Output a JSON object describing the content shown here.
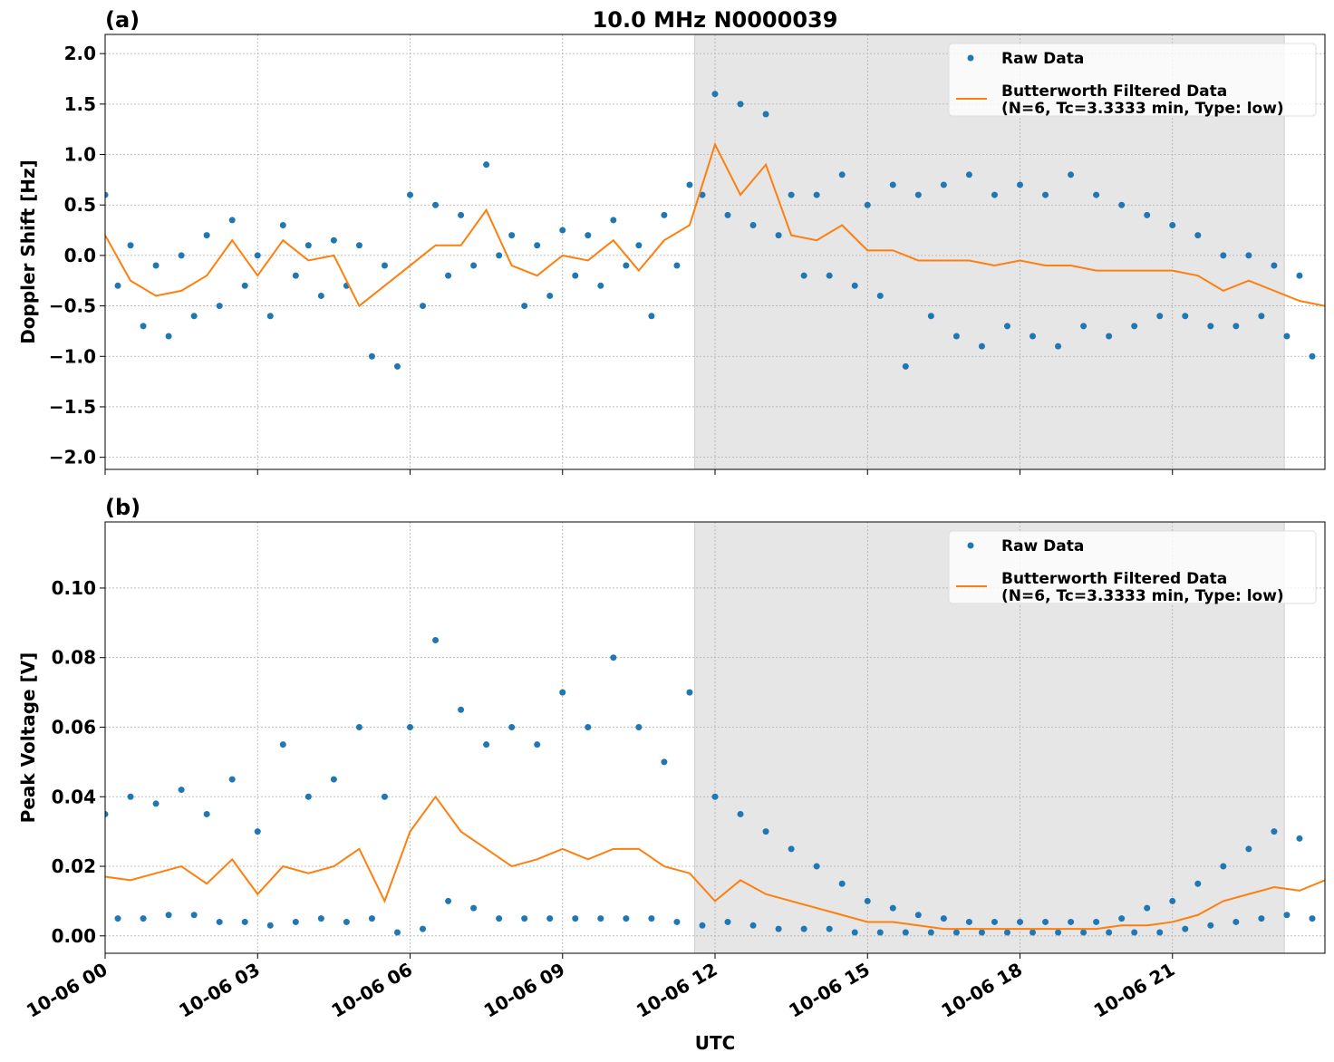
{
  "chart_data": [
    {
      "type": "scatter_line",
      "title": "10.0 MHz N0000039",
      "panel_label": "(a)",
      "ylabel": "Doppler Shift [Hz]",
      "xlim": [
        0,
        24
      ],
      "xticks": [
        0,
        3,
        6,
        9,
        12,
        15,
        18,
        21
      ],
      "xticklabels": false,
      "ylim": [
        -2.12,
        2.19
      ],
      "yticks": [
        {
          "value": -2.0,
          "label": "−2.0"
        },
        {
          "value": -1.5,
          "label": "−1.5"
        },
        {
          "value": -1.0,
          "label": "−1.0"
        },
        {
          "value": -0.5,
          "label": "−0.5"
        },
        {
          "value": 0.0,
          "label": "0.0"
        },
        {
          "value": 0.5,
          "label": "0.5"
        },
        {
          "value": 1.0,
          "label": "1.0"
        },
        {
          "value": 1.5,
          "label": "1.5"
        },
        {
          "value": 2.0,
          "label": "2.0"
        }
      ],
      "grid": true,
      "shaded_span": [
        11.6,
        23.2
      ],
      "shade_color": "#e6e6e6",
      "legend": "upper right",
      "series": [
        {
          "name": "Raw Data",
          "type": "scatter",
          "color": "#1f77b4",
          "x": [
            0,
            0.25,
            0.5,
            0.75,
            1,
            1.25,
            1.5,
            1.75,
            2,
            2.25,
            2.5,
            2.75,
            3,
            3.25,
            3.5,
            3.75,
            4,
            4.25,
            4.5,
            4.75,
            5,
            5.25,
            5.5,
            5.75,
            6,
            6.25,
            6.5,
            6.75,
            7,
            7.25,
            7.5,
            7.75,
            8,
            8.25,
            8.5,
            8.75,
            9,
            9.25,
            9.5,
            9.75,
            10,
            10.25,
            10.5,
            10.75,
            11,
            11.25,
            11.5,
            11.75,
            12,
            12.25,
            12.5,
            12.75,
            13,
            13.25,
            13.5,
            13.75,
            14,
            14.25,
            14.5,
            14.75,
            15,
            15.25,
            15.5,
            15.75,
            16,
            16.25,
            16.5,
            16.75,
            17,
            17.25,
            17.5,
            17.75,
            18,
            18.25,
            18.5,
            18.75,
            19,
            19.25,
            19.5,
            19.75,
            20,
            20.25,
            20.5,
            20.75,
            21,
            21.25,
            21.5,
            21.75,
            22,
            22.25,
            22.5,
            22.75,
            23,
            23.25,
            23.5,
            23.75
          ],
          "values": [
            0.6,
            -0.3,
            0.1,
            -0.7,
            -0.1,
            -0.8,
            0.0,
            -0.6,
            0.2,
            -0.5,
            0.35,
            -0.3,
            0.0,
            -0.6,
            0.3,
            -0.2,
            0.1,
            -0.4,
            0.15,
            -0.3,
            0.1,
            -1.0,
            -0.1,
            -1.1,
            0.6,
            -0.5,
            0.5,
            -0.2,
            0.4,
            -0.1,
            0.9,
            0.0,
            0.2,
            -0.5,
            0.1,
            -0.4,
            0.25,
            -0.2,
            0.2,
            -0.3,
            0.35,
            -0.1,
            0.1,
            -0.6,
            0.4,
            -0.1,
            0.7,
            0.6,
            1.6,
            0.4,
            1.5,
            0.3,
            1.4,
            0.2,
            0.6,
            -0.2,
            0.6,
            -0.2,
            0.8,
            -0.3,
            0.5,
            -0.4,
            0.7,
            -1.1,
            0.6,
            -0.6,
            0.7,
            -0.8,
            0.8,
            -0.9,
            0.6,
            -0.7,
            0.7,
            -0.8,
            0.6,
            -0.9,
            0.8,
            -0.7,
            0.6,
            -0.8,
            0.5,
            -0.7,
            0.4,
            -0.6,
            0.3,
            -0.6,
            0.2,
            -0.7,
            0.0,
            -0.7,
            0.0,
            -0.6,
            -0.1,
            -0.8,
            -0.2,
            -1.0
          ]
        },
        {
          "name": "Butterworth Filtered Data\n(N=6, Tc=3.3333 min, Type: low)",
          "type": "line",
          "color": "#ff7f0e",
          "x": [
            0,
            0.5,
            1,
            1.5,
            2,
            2.5,
            3,
            3.5,
            4,
            4.5,
            5,
            5.5,
            6,
            6.5,
            7,
            7.5,
            8,
            8.5,
            9,
            9.5,
            10,
            10.5,
            11,
            11.5,
            12,
            12.5,
            13,
            13.5,
            14,
            14.5,
            15,
            15.5,
            16,
            16.5,
            17,
            17.5,
            18,
            18.5,
            19,
            19.5,
            20,
            20.5,
            21,
            21.5,
            22,
            22.5,
            23,
            23.5,
            24
          ],
          "values": [
            0.2,
            -0.25,
            -0.4,
            -0.35,
            -0.2,
            0.15,
            -0.2,
            0.15,
            -0.05,
            0.0,
            -0.5,
            -0.3,
            -0.1,
            0.1,
            0.1,
            0.45,
            -0.1,
            -0.2,
            0.0,
            -0.05,
            0.15,
            -0.15,
            0.15,
            0.3,
            1.1,
            0.6,
            0.9,
            0.2,
            0.15,
            0.3,
            0.05,
            0.05,
            -0.05,
            -0.05,
            -0.05,
            -0.1,
            -0.05,
            -0.1,
            -0.1,
            -0.15,
            -0.15,
            -0.15,
            -0.15,
            -0.2,
            -0.35,
            -0.25,
            -0.35,
            -0.45,
            -0.5
          ]
        }
      ]
    },
    {
      "type": "scatter_line",
      "panel_label": "(b)",
      "ylabel": "Peak Voltage [V]",
      "xlabel": "UTC",
      "xlim": [
        0,
        24
      ],
      "xticks": [
        {
          "value": 0,
          "label": "10-06 00"
        },
        {
          "value": 3,
          "label": "10-06 03"
        },
        {
          "value": 6,
          "label": "10-06 06"
        },
        {
          "value": 9,
          "label": "10-06 09"
        },
        {
          "value": 12,
          "label": "10-06 12"
        },
        {
          "value": 15,
          "label": "10-06 15"
        },
        {
          "value": 18,
          "label": "10-06 18"
        },
        {
          "value": 21,
          "label": "10-06 21"
        }
      ],
      "xticklabels": true,
      "ylim": [
        -0.005,
        0.119
      ],
      "yticks": [
        {
          "value": 0.0,
          "label": "0.00"
        },
        {
          "value": 0.02,
          "label": "0.02"
        },
        {
          "value": 0.04,
          "label": "0.04"
        },
        {
          "value": 0.06,
          "label": "0.06"
        },
        {
          "value": 0.08,
          "label": "0.08"
        },
        {
          "value": 0.1,
          "label": "0.10"
        }
      ],
      "grid": true,
      "shaded_span": [
        11.6,
        23.2
      ],
      "shade_color": "#e6e6e6",
      "legend": "upper right",
      "series": [
        {
          "name": "Raw Data",
          "type": "scatter",
          "color": "#1f77b4",
          "x": [
            0,
            0.25,
            0.5,
            0.75,
            1,
            1.25,
            1.5,
            1.75,
            2,
            2.25,
            2.5,
            2.75,
            3,
            3.25,
            3.5,
            3.75,
            4,
            4.25,
            4.5,
            4.75,
            5,
            5.25,
            5.5,
            5.75,
            6,
            6.25,
            6.5,
            6.75,
            7,
            7.25,
            7.5,
            7.75,
            8,
            8.25,
            8.5,
            8.75,
            9,
            9.25,
            9.5,
            9.75,
            10,
            10.25,
            10.5,
            10.75,
            11,
            11.25,
            11.5,
            11.75,
            12,
            12.25,
            12.5,
            12.75,
            13,
            13.25,
            13.5,
            13.75,
            14,
            14.25,
            14.5,
            14.75,
            15,
            15.25,
            15.5,
            15.75,
            16,
            16.25,
            16.5,
            16.75,
            17,
            17.25,
            17.5,
            17.75,
            18,
            18.25,
            18.5,
            18.75,
            19,
            19.25,
            19.5,
            19.75,
            20,
            20.25,
            20.5,
            20.75,
            21,
            21.25,
            21.5,
            21.75,
            22,
            22.25,
            22.5,
            22.75,
            23,
            23.25,
            23.5,
            23.75
          ],
          "values": [
            0.035,
            0.005,
            0.04,
            0.005,
            0.038,
            0.006,
            0.042,
            0.006,
            0.035,
            0.004,
            0.045,
            0.004,
            0.03,
            0.003,
            0.055,
            0.004,
            0.04,
            0.005,
            0.045,
            0.004,
            0.06,
            0.005,
            0.04,
            0.001,
            0.06,
            0.002,
            0.085,
            0.01,
            0.065,
            0.008,
            0.055,
            0.005,
            0.06,
            0.005,
            0.055,
            0.005,
            0.07,
            0.005,
            0.06,
            0.005,
            0.08,
            0.005,
            0.06,
            0.005,
            0.05,
            0.004,
            0.07,
            0.003,
            0.04,
            0.004,
            0.035,
            0.003,
            0.03,
            0.002,
            0.025,
            0.002,
            0.02,
            0.002,
            0.015,
            0.001,
            0.01,
            0.001,
            0.008,
            0.001,
            0.006,
            0.001,
            0.005,
            0.001,
            0.004,
            0.001,
            0.004,
            0.001,
            0.004,
            0.001,
            0.004,
            0.001,
            0.004,
            0.001,
            0.004,
            0.001,
            0.005,
            0.001,
            0.008,
            0.001,
            0.01,
            0.002,
            0.015,
            0.003,
            0.02,
            0.004,
            0.025,
            0.005,
            0.03,
            0.006,
            0.028,
            0.005
          ]
        },
        {
          "name": "Butterworth Filtered Data\n(N=6, Tc=3.3333 min, Type: low)",
          "type": "line",
          "color": "#ff7f0e",
          "x": [
            0,
            0.5,
            1,
            1.5,
            2,
            2.5,
            3,
            3.5,
            4,
            4.5,
            5,
            5.5,
            6,
            6.5,
            7,
            7.5,
            8,
            8.5,
            9,
            9.5,
            10,
            10.5,
            11,
            11.5,
            12,
            12.5,
            13,
            13.5,
            14,
            14.5,
            15,
            15.5,
            16,
            16.5,
            17,
            17.5,
            18,
            18.5,
            19,
            19.5,
            20,
            20.5,
            21,
            21.5,
            22,
            22.5,
            23,
            23.5,
            24
          ],
          "values": [
            0.017,
            0.016,
            0.018,
            0.02,
            0.015,
            0.022,
            0.012,
            0.02,
            0.018,
            0.02,
            0.025,
            0.01,
            0.03,
            0.04,
            0.03,
            0.025,
            0.02,
            0.022,
            0.025,
            0.022,
            0.025,
            0.025,
            0.02,
            0.018,
            0.01,
            0.016,
            0.012,
            0.01,
            0.008,
            0.006,
            0.004,
            0.004,
            0.003,
            0.002,
            0.002,
            0.002,
            0.002,
            0.002,
            0.002,
            0.002,
            0.003,
            0.003,
            0.004,
            0.006,
            0.01,
            0.012,
            0.014,
            0.013,
            0.016
          ]
        }
      ]
    }
  ]
}
